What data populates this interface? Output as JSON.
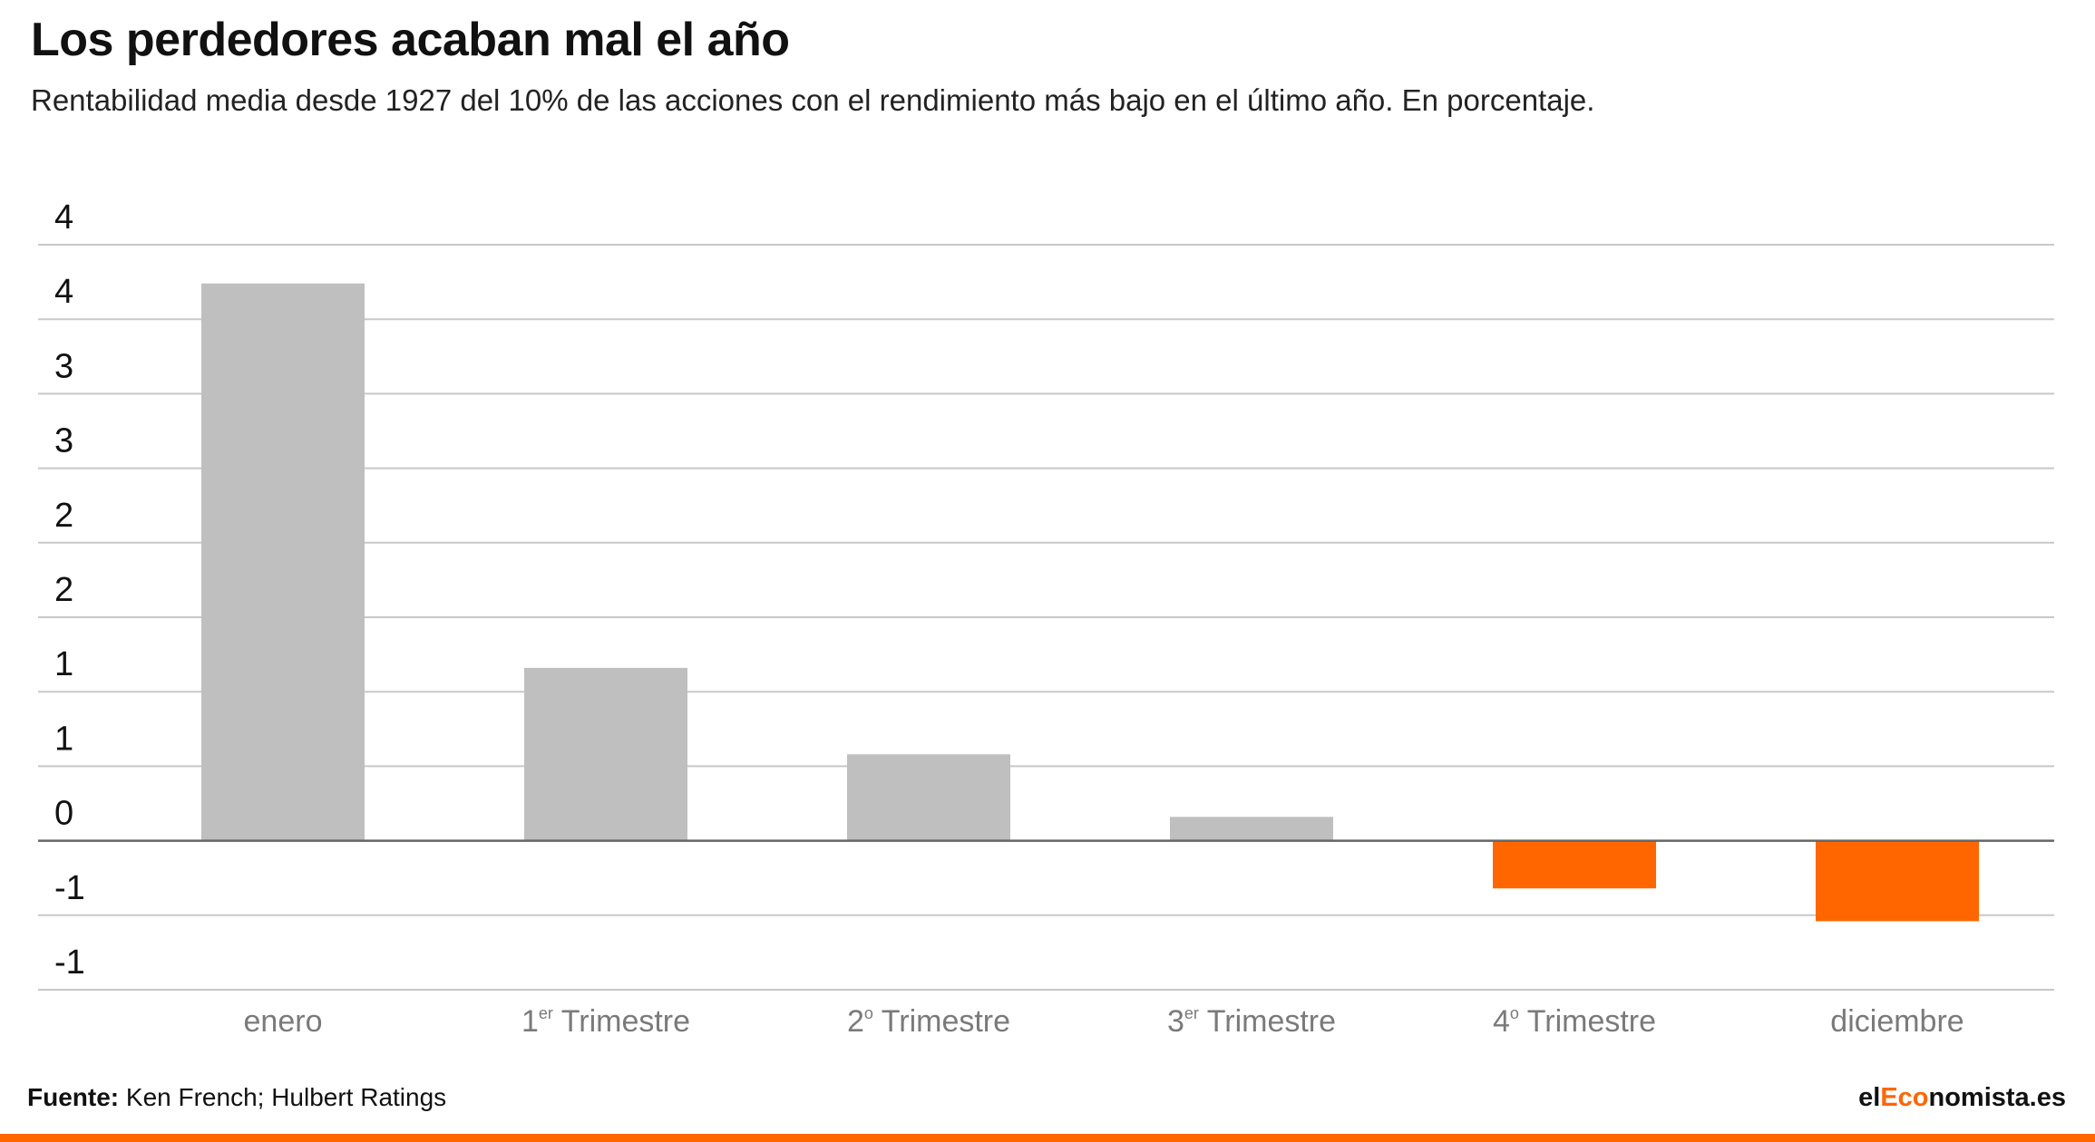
{
  "header": {
    "title": "Los perdedores acaban mal el año",
    "subtitle": "Rentabilidad media desde 1927 del 10% de las acciones con el rendimiento más bajo en el último año. En porcentaje."
  },
  "footer": {
    "source_label": "Fuente:",
    "source_text": "Ken French; Hulbert Ratings",
    "brand_prefix": "el",
    "brand_accent": "Eco",
    "brand_suffix": "nomista.es"
  },
  "colors": {
    "positive": "#bfbfbf",
    "negative": "#ff6600",
    "grid": "#c8c8c8",
    "baseline": "#666666",
    "accent": "#ff6600"
  },
  "chart_data": {
    "type": "bar",
    "categories": [
      {
        "main": "enero",
        "sup": "",
        "rest": ""
      },
      {
        "main": "1",
        "sup": "er",
        "rest": " Trimestre"
      },
      {
        "main": "2",
        "sup": "o",
        "rest": " Trimestre"
      },
      {
        "main": "3",
        "sup": "er",
        "rest": " Trimestre"
      },
      {
        "main": "4",
        "sup": "o",
        "rest": " Trimestre"
      },
      {
        "main": "diciembre",
        "sup": "",
        "rest": ""
      }
    ],
    "values": [
      3.74,
      1.16,
      0.58,
      0.16,
      -0.32,
      -0.54
    ],
    "ylim": [
      -1.0,
      4.0
    ],
    "yticks": [
      4.0,
      3.5,
      3.0,
      2.5,
      2.0,
      1.5,
      1.0,
      0.5,
      0.0,
      -0.5,
      -1.0
    ],
    "ytick_labels": [
      "4",
      "4",
      "3",
      "3",
      "2",
      "2",
      "1",
      "1",
      "0",
      "-1",
      "-1"
    ],
    "grid": true,
    "legend": "none"
  }
}
